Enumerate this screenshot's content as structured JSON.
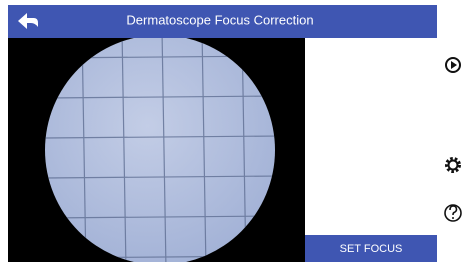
{
  "header": {
    "title": "Dermatoscope Focus Correction"
  },
  "button": {
    "label": "SET FOCUS"
  }
}
